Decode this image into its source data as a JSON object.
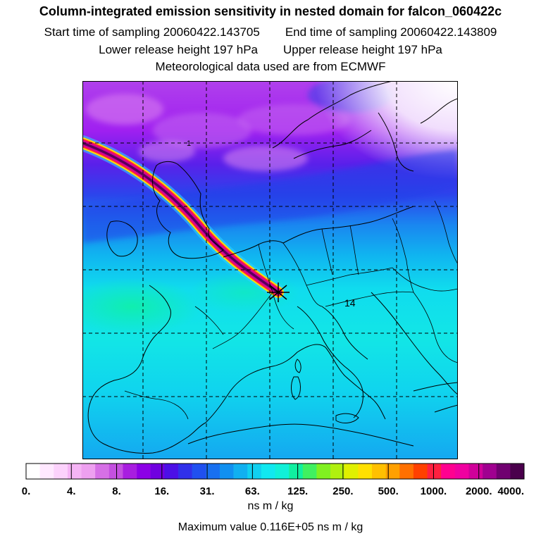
{
  "title": {
    "line1": "Column-integrated emission sensitivity in nested domain for falcon_060422c",
    "start_label": "Start time of sampling 20060422.143705",
    "end_label": "End time of sampling 20060422.143809",
    "lower_label": "Lower release height  197 hPa",
    "upper_label": "Upper release height  197 hPa",
    "line4": "Meteorological data used are from ECMWF"
  },
  "map": {
    "inline_labels": [
      "1",
      "14"
    ],
    "release_marker": "release-point-star-icon",
    "background_field": "low sensitivity (cyan/green) over central Europe, blue/violet band to the north"
  },
  "legend": {
    "unit": "ns m / kg",
    "tick_labels": [
      "0.",
      "4.",
      "8.",
      "16.",
      "31.",
      "63.",
      "125.",
      "250.",
      "500.",
      "1000.",
      "2000.",
      "4000."
    ],
    "colors": [
      "#ffffff",
      "#ffe8ff",
      "#fcd2fc",
      "#f5b4f5",
      "#eea0f0",
      "#d670e6",
      "#c450e0",
      "#a81ee0",
      "#8c00e6",
      "#7000e0",
      "#4c10e6",
      "#3030ea",
      "#2050f0",
      "#1870f0",
      "#1090f0",
      "#10b0f0",
      "#10d0f0",
      "#10e8f0",
      "#10f0d8",
      "#10f0a0",
      "#40f060",
      "#80f020",
      "#b0f010",
      "#e0f000",
      "#ffe000",
      "#ffc000",
      "#ffa000",
      "#ff7000",
      "#ff4000",
      "#ff2040",
      "#ff0090",
      "#f000a0",
      "#d0009a",
      "#a00090",
      "#700070",
      "#4a004c"
    ]
  },
  "footer": {
    "max_value": "Maximum value  0.116E+05 ns m / kg"
  }
}
